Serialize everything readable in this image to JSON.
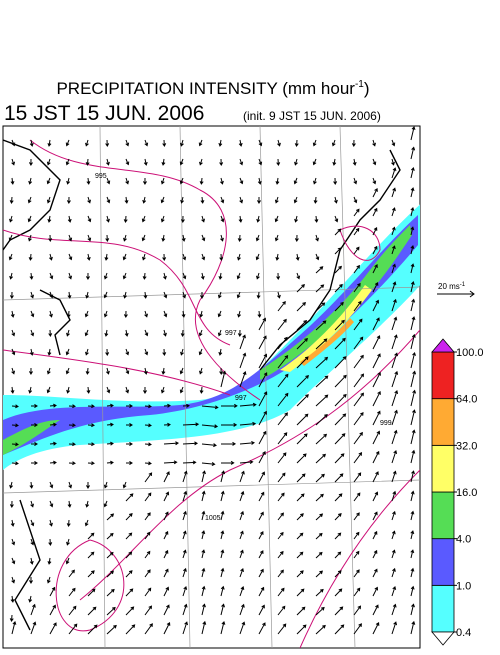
{
  "header": {
    "title": "PRECIPITATION INTENSITY (mm hour",
    "title_superscript": "-1",
    "title_close": ")",
    "valid_time": "15 JST 15 JUN. 2006",
    "init_time": "(init. 9 JST 15 JUN. 2006)"
  },
  "reference_vector": {
    "label": "20 ms",
    "superscript": "-1"
  },
  "colorbar": {
    "levels": [
      {
        "value": 0.4,
        "label": "0.4"
      },
      {
        "value": 1,
        "label": "1.0"
      },
      {
        "value": 4,
        "label": "4.0"
      },
      {
        "value": 16,
        "label": "16.0"
      },
      {
        "value": 32,
        "label": "32.0"
      },
      {
        "value": 64,
        "label": "64.0"
      },
      {
        "value": 100,
        "label": "100.0"
      }
    ],
    "colors": [
      "#ffffff",
      "#55ffff",
      "#5a5aff",
      "#55dd55",
      "#ffff66",
      "#ffaa33",
      "#ee2222",
      "#cc22ee"
    ]
  },
  "contour_labels": [
    "995",
    "997",
    "997",
    "999",
    "1005"
  ]
}
